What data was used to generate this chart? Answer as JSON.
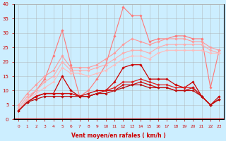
{
  "xlabel": "Vent moyen/en rafales ( km/h )",
  "x": [
    0,
    1,
    2,
    3,
    4,
    5,
    6,
    7,
    8,
    9,
    10,
    11,
    12,
    13,
    14,
    15,
    16,
    17,
    18,
    19,
    20,
    21,
    22,
    23
  ],
  "ylim": [
    0,
    40
  ],
  "xlim": [
    -0.5,
    23.5
  ],
  "yticks": [
    0,
    5,
    10,
    15,
    20,
    25,
    30,
    35,
    40
  ],
  "background_color": "#cceeff",
  "series": [
    {
      "color": "#ff7777",
      "alpha": 1.0,
      "linewidth": 0.8,
      "marker": "D",
      "markersize": 1.8,
      "values": [
        3,
        7,
        10,
        14,
        22,
        31,
        19,
        8,
        10,
        14,
        19,
        29,
        39,
        36,
        36,
        27,
        28,
        28,
        29,
        29,
        28,
        28,
        11,
        24
      ]
    },
    {
      "color": "#ff9999",
      "alpha": 1.0,
      "linewidth": 0.8,
      "marker": "D",
      "markersize": 1.8,
      "values": [
        5,
        9,
        12,
        15,
        17,
        22,
        18,
        18,
        18,
        19,
        21,
        23,
        26,
        28,
        27,
        26,
        27,
        28,
        28,
        28,
        27,
        27,
        25,
        24
      ]
    },
    {
      "color": "#ffaaaa",
      "alpha": 1.0,
      "linewidth": 0.8,
      "marker": "D",
      "markersize": 1.8,
      "values": [
        4,
        8,
        10,
        13,
        15,
        20,
        17,
        17,
        17,
        18,
        19,
        21,
        23,
        24,
        24,
        23,
        25,
        26,
        26,
        26,
        26,
        26,
        24,
        23
      ]
    },
    {
      "color": "#ffbbbb",
      "alpha": 1.0,
      "linewidth": 0.8,
      "marker": "D",
      "markersize": 1.8,
      "values": [
        3,
        7,
        9,
        11,
        13,
        18,
        16,
        16,
        15,
        16,
        17,
        19,
        21,
        22,
        22,
        21,
        23,
        24,
        24,
        24,
        24,
        24,
        23,
        23
      ]
    },
    {
      "color": "#cc0000",
      "alpha": 1.0,
      "linewidth": 0.9,
      "marker": "D",
      "markersize": 1.8,
      "values": [
        3,
        6,
        8,
        9,
        9,
        15,
        10,
        8,
        9,
        10,
        10,
        13,
        18,
        19,
        19,
        14,
        14,
        14,
        12,
        11,
        13,
        8,
        5,
        8
      ]
    },
    {
      "color": "#dd2222",
      "alpha": 1.0,
      "linewidth": 0.9,
      "marker": "D",
      "markersize": 1.8,
      "values": [
        3,
        6,
        8,
        9,
        9,
        9,
        9,
        8,
        8,
        9,
        10,
        11,
        13,
        13,
        14,
        13,
        12,
        12,
        11,
        11,
        11,
        8,
        5,
        7
      ]
    },
    {
      "color": "#cc1111",
      "alpha": 1.0,
      "linewidth": 0.9,
      "marker": "D",
      "markersize": 1.8,
      "values": [
        3,
        6,
        8,
        9,
        9,
        9,
        9,
        8,
        8,
        9,
        10,
        10,
        12,
        12,
        13,
        12,
        11,
        11,
        10,
        10,
        11,
        8,
        5,
        7
      ]
    },
    {
      "color": "#bb1111",
      "alpha": 1.0,
      "linewidth": 0.9,
      "marker": "D",
      "markersize": 1.8,
      "values": [
        3,
        6,
        7,
        8,
        8,
        8,
        8,
        8,
        8,
        9,
        9,
        10,
        11,
        12,
        12,
        11,
        11,
        11,
        10,
        10,
        10,
        8,
        5,
        7
      ]
    }
  ]
}
